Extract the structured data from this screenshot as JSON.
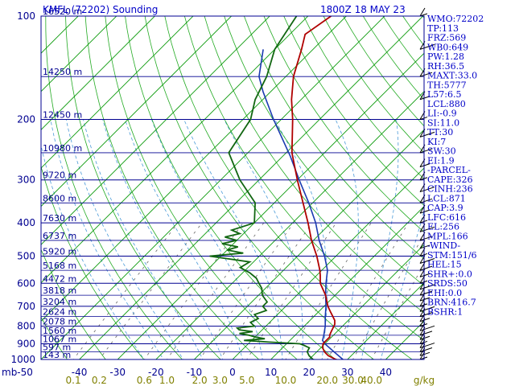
{
  "header": {
    "station": "KMFL (72202) Sounding",
    "time": "1800Z 18 MAY 23"
  },
  "colors": {
    "isobar": "#000090",
    "isotherm": "#0a9a0a",
    "dry_adiabat": "#22aa22",
    "moist_adiabat": "#4a9ad8",
    "mixing_ratio": "#666666",
    "temperature": "#b00000",
    "dewpoint": "#116611",
    "parcel": "#1a3ab0",
    "text": "#0000c8"
  },
  "indices": [
    "WMO:72202",
    "TP:113",
    "FRZ:569",
    "WB0:649",
    "PW:1.28",
    "RH:36.5",
    "MAXT:33.0",
    "TH:5777",
    "L57:6.5",
    "LCL:880",
    "LI:-0.9",
    "SI:11.0",
    "TT:30",
    "KI:7",
    "SW:30",
    "EI:1.9",
    "-PARCEL-",
    "CAPE:326",
    "CINH:236",
    "LCL:871",
    "CAP:3.9",
    "LFC:616",
    "EL:256",
    "MPL:166",
    "-WIND-",
    "STM:151/6",
    "HEL:15",
    "SHR+:0.0",
    "SRDS:50",
    "EHI:0.0",
    "BRN:416.7",
    "BSHR:1"
  ],
  "chart_data": {
    "type": "line",
    "skew_t": true,
    "xlim": [
      -50,
      50
    ],
    "ylim": [
      1000,
      100
    ],
    "pressure_levels": [
      100,
      200,
      300,
      400,
      500,
      600,
      700,
      800,
      900,
      1000
    ],
    "x_ticks": [
      "-40",
      "-30",
      "-20",
      "-10",
      "0",
      "10",
      "20",
      "30",
      "40"
    ],
    "x_start_label": "mb-50",
    "mixing_ratio_labels": [
      "0.1",
      "0.2",
      "0.6",
      "1.0",
      "2.0",
      "3.0",
      "5.0",
      "10.0",
      "20.0",
      "30.0",
      "40.0"
    ],
    "mixing_ratio_unit": "g/kg",
    "height_labels": [
      {
        "p": 100,
        "h": "16520 m"
      },
      {
        "p": 150,
        "h": "14250 m"
      },
      {
        "p": 200,
        "h": "12450 m"
      },
      {
        "p": 250,
        "h": "10980 m"
      },
      {
        "p": 300,
        "h": "9720 m"
      },
      {
        "p": 350,
        "h": "8600 m"
      },
      {
        "p": 400,
        "h": "7630 m"
      },
      {
        "p": 450,
        "h": "6737 m"
      },
      {
        "p": 500,
        "h": "5920 m"
      },
      {
        "p": 550,
        "h": "5168 m"
      },
      {
        "p": 600,
        "h": "4472 m"
      },
      {
        "p": 650,
        "h": "3818 m"
      },
      {
        "p": 700,
        "h": "3204 m"
      },
      {
        "p": 750,
        "h": "2624 m"
      },
      {
        "p": 800,
        "h": "2078 m"
      },
      {
        "p": 850,
        "h": "1560 m"
      },
      {
        "p": 900,
        "h": "1067 m"
      },
      {
        "p": 950,
        "h": "597 m"
      },
      {
        "p": 1000,
        "h": "143 m"
      }
    ],
    "series": [
      {
        "key": "temperature",
        "values": [
          [
            1014,
            30.0
          ],
          [
            1000,
            27.0
          ],
          [
            975,
            24.0
          ],
          [
            950,
            22.0
          ],
          [
            925,
            20.5
          ],
          [
            900,
            19.5
          ],
          [
            880,
            19.5
          ],
          [
            860,
            19.5
          ],
          [
            850,
            19.0
          ],
          [
            830,
            18.5
          ],
          [
            810,
            18.0
          ],
          [
            790,
            17.5
          ],
          [
            770,
            16.5
          ],
          [
            750,
            15.0
          ],
          [
            725,
            13.0
          ],
          [
            700,
            11.0
          ],
          [
            650,
            7.5
          ],
          [
            600,
            3.0
          ],
          [
            570,
            1.0
          ],
          [
            550,
            -0.5
          ],
          [
            500,
            -5.0
          ],
          [
            450,
            -10.5
          ],
          [
            400,
            -16.0
          ],
          [
            350,
            -22.5
          ],
          [
            300,
            -30.0
          ],
          [
            250,
            -38.5
          ],
          [
            200,
            -47.0
          ],
          [
            175,
            -52.5
          ],
          [
            150,
            -58.0
          ],
          [
            125,
            -63.0
          ],
          [
            113,
            -66.0
          ],
          [
            100,
            -64.0
          ]
        ]
      },
      {
        "key": "dewpoint",
        "values": [
          [
            1014,
            24.0
          ],
          [
            1000,
            21.0
          ],
          [
            975,
            19.0
          ],
          [
            950,
            17.5
          ],
          [
            925,
            17.0
          ],
          [
            910,
            15.0
          ],
          [
            900,
            13.5
          ],
          [
            890,
            5.0
          ],
          [
            880,
            -2.0
          ],
          [
            870,
            3.0
          ],
          [
            860,
            0.0
          ],
          [
            850,
            -2.0
          ],
          [
            840,
            -5.0
          ],
          [
            830,
            -2.0
          ],
          [
            820,
            -6.0
          ],
          [
            810,
            -7.0
          ],
          [
            800,
            -3.0
          ],
          [
            780,
            -5.0
          ],
          [
            760,
            -4.0
          ],
          [
            740,
            -6.0
          ],
          [
            720,
            -4.0
          ],
          [
            700,
            -6.0
          ],
          [
            680,
            -6.0
          ],
          [
            650,
            -9.0
          ],
          [
            620,
            -11.0
          ],
          [
            600,
            -13.0
          ],
          [
            580,
            -15.0
          ],
          [
            560,
            -18.0
          ],
          [
            540,
            -22.0
          ],
          [
            520,
            -21.0
          ],
          [
            500,
            -33.0
          ],
          [
            490,
            -25.0
          ],
          [
            480,
            -30.0
          ],
          [
            470,
            -28.0
          ],
          [
            460,
            -33.0
          ],
          [
            450,
            -30.0
          ],
          [
            440,
            -34.0
          ],
          [
            430,
            -31.0
          ],
          [
            420,
            -34.0
          ],
          [
            410,
            -32.0
          ],
          [
            400,
            -30.0
          ],
          [
            350,
            -35.0
          ],
          [
            300,
            -45.0
          ],
          [
            250,
            -55.0
          ],
          [
            200,
            -58.0
          ],
          [
            175,
            -62.0
          ],
          [
            150,
            -65.0
          ],
          [
            125,
            -70.0
          ],
          [
            100,
            -73.0
          ]
        ]
      },
      {
        "key": "parcel",
        "values": [
          [
            1014,
            30.0
          ],
          [
            950,
            24.5
          ],
          [
            900,
            20.0
          ],
          [
            880,
            18.5
          ],
          [
            850,
            17.5
          ],
          [
            800,
            15.5
          ],
          [
            750,
            13.0
          ],
          [
            700,
            10.5
          ],
          [
            650,
            7.5
          ],
          [
            600,
            4.5
          ],
          [
            550,
            1.5
          ],
          [
            500,
            -3.0
          ],
          [
            450,
            -8.5
          ],
          [
            400,
            -14.0
          ],
          [
            350,
            -21.0
          ],
          [
            300,
            -29.5
          ],
          [
            256,
            -38.0
          ],
          [
            200,
            -52.0
          ],
          [
            166,
            -62.0
          ],
          [
            150,
            -67.0
          ],
          [
            125,
            -73.0
          ]
        ]
      }
    ],
    "barb_pressures": [
      1000,
      975,
      950,
      925,
      900,
      875,
      850,
      825,
      800,
      775,
      750,
      725,
      700,
      675,
      650,
      625,
      600,
      575,
      550,
      525,
      500,
      475,
      450,
      425,
      400,
      375,
      350,
      325,
      300,
      275,
      250,
      225,
      200,
      175,
      150,
      125,
      100
    ]
  }
}
